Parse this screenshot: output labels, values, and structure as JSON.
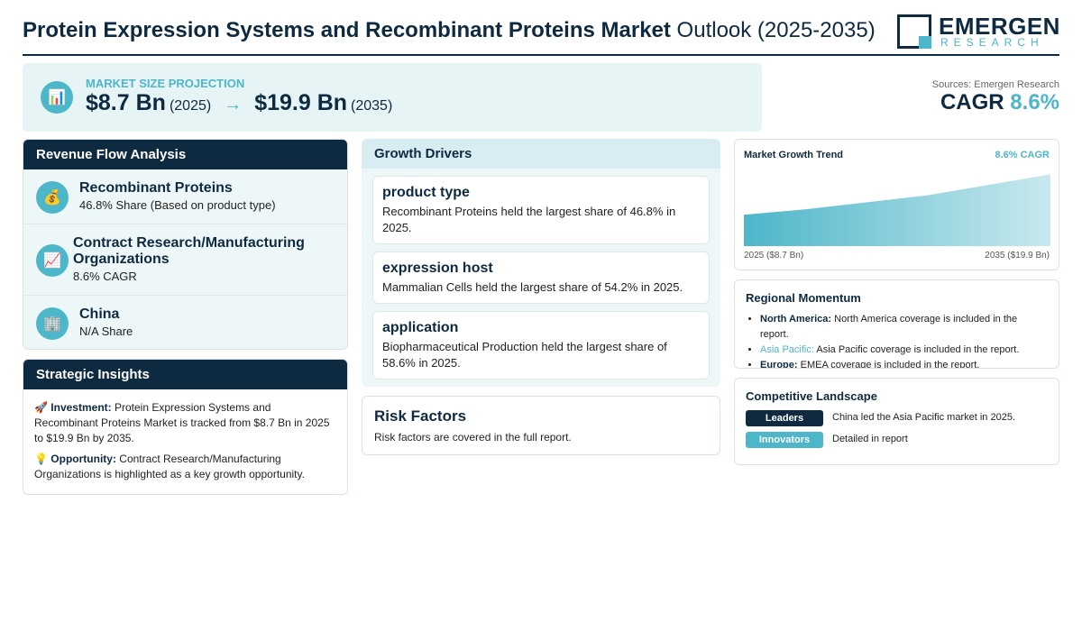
{
  "header": {
    "title_bold": "Protein Expression Systems and Recombinant Proteins Market",
    "title_light": "Outlook (2025-2035)",
    "logo_main": "EMERGEN",
    "logo_sub": "RESEARCH"
  },
  "projection": {
    "icon": "bar-chart-icon",
    "label": "MARKET SIZE PROJECTION",
    "start_value": "$8.7 Bn",
    "start_year": "(2025)",
    "arrow": "→",
    "end_value": "$19.9 Bn",
    "end_year": "(2035)"
  },
  "summary": {
    "sources": "Sources: Emergen Research",
    "cagr_label": "CAGR",
    "cagr_value": "8.6%"
  },
  "revenue": {
    "title": "Revenue Flow Analysis",
    "items": [
      {
        "icon": "money-bag-icon",
        "glyph": "💰",
        "title": "Recombinant Proteins",
        "sub": "46.8% Share (Based on product type)"
      },
      {
        "icon": "trend-chart-icon",
        "glyph": "📈",
        "title": "Contract Research/Manufacturing Organizations",
        "sub": "8.6% CAGR"
      },
      {
        "icon": "building-icon",
        "glyph": "🏢",
        "title": "China",
        "sub": "N/A Share"
      }
    ]
  },
  "strategic": {
    "title": "Strategic Insights",
    "investment_icon": "🚀",
    "investment_label": "Investment:",
    "investment_text": "Protein Expression Systems and Recombinant Proteins Market is tracked from $8.7 Bn in 2025 to $19.9 Bn by 2035.",
    "opportunity_icon": "💡",
    "opportunity_label": "Opportunity:",
    "opportunity_text": "Contract Research/Manufacturing Organizations is highlighted as a key growth opportunity."
  },
  "drivers": {
    "title": "Growth Drivers",
    "cards": [
      {
        "heading": "product type",
        "text": "Recombinant Proteins held the largest share of 46.8% in 2025."
      },
      {
        "heading": "expression host",
        "text": "Mammalian Cells held the largest share of 54.2% in 2025."
      },
      {
        "heading": "application",
        "text": "Biopharmaceutical Production held the largest share of 58.6% in 2025."
      }
    ]
  },
  "risk": {
    "title": "Risk Factors",
    "text": "Risk factors are covered in the full report."
  },
  "trend": {
    "title": "Market Growth Trend",
    "cagr": "8.6% CAGR",
    "start_label": "2025 ($8.7 Bn)",
    "end_label": "2035 ($19.9 Bn)"
  },
  "chart_data": {
    "type": "area",
    "x": [
      2025,
      2027,
      2031,
      2035
    ],
    "values": [
      8.7,
      10.2,
      14.1,
      19.9
    ],
    "ylim": [
      0,
      21
    ]
  },
  "region": {
    "title": "Regional Momentum",
    "items": [
      {
        "name": "North America:",
        "text": "North America coverage is included in the report."
      },
      {
        "name": "Asia Pacific:",
        "text": "Asia Pacific coverage is included in the report."
      },
      {
        "name": "Europe:",
        "text": "EMEA coverage is included in the report."
      }
    ]
  },
  "competitive": {
    "title": "Competitive Landscape",
    "leaders_label": "Leaders",
    "leaders_text": "China led the Asia Pacific market in 2025.",
    "innovators_label": "Innovators",
    "innovators_text": "Detailed in report"
  },
  "colors": {
    "navy": "#0e2a40",
    "accent": "#4db6c9",
    "panel_bg": "#eef7f8"
  }
}
